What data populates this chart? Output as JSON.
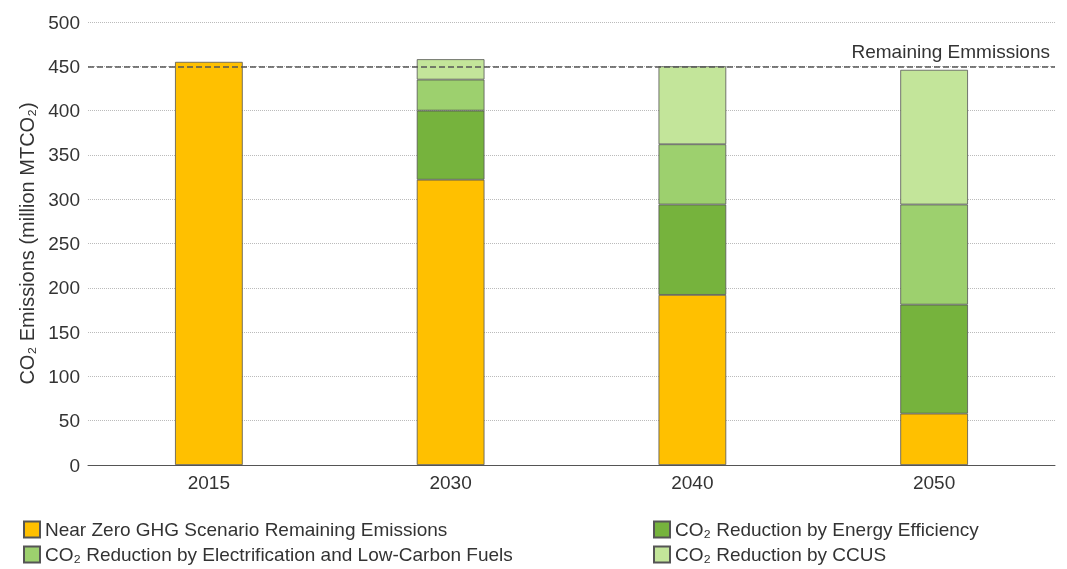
{
  "chart_data": {
    "type": "bar",
    "stacked": true,
    "ylabel": "CO₂ Emissions (million MTCO₂)",
    "categories": [
      "2015",
      "2030",
      "2040",
      "2050"
    ],
    "series": [
      {
        "name": "Near Zero GHG Scenario Remaining Emissions",
        "color": "#ffc000",
        "values": [
          455,
          322,
          192,
          58
        ]
      },
      {
        "name": "CO₂ Reduction by Energy Efficiency",
        "color": "#76b33d",
        "values": [
          null,
          78,
          102,
          123
        ]
      },
      {
        "name": "CO₂ Reduction by Electrification and Low-Carbon Fuels",
        "color": "#9dd06e",
        "values": [
          null,
          35,
          68,
          113
        ]
      },
      {
        "name": "CO₂ Reduction by CCUS",
        "color": "#c3e59a",
        "values": [
          null,
          23,
          88,
          152
        ]
      }
    ],
    "ylim": [
      0,
      500
    ],
    "yticks": [
      0,
      50,
      100,
      150,
      200,
      250,
      300,
      350,
      400,
      450,
      500
    ],
    "grid": "y",
    "legend": "bottom",
    "ref_lines": [
      {
        "axis": "y",
        "value": 450,
        "label": "Remaining Emmissions",
        "color": "#555555",
        "line_style": "dashed"
      }
    ]
  }
}
